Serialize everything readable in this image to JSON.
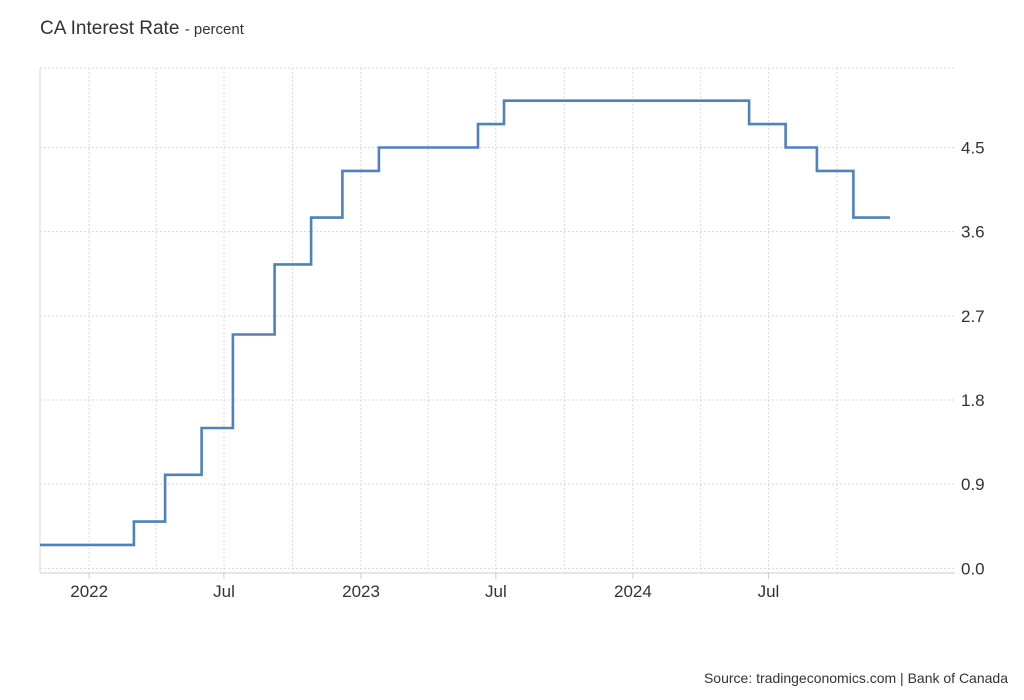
{
  "header": {
    "title": "CA Interest Rate",
    "subtitle": "- percent"
  },
  "source": "Source: tradingeconomics.com | Bank of Canada",
  "colors": {
    "line": "#4f81bd",
    "grid": "#d9d9d9",
    "axis": "#cccccc",
    "text": "#333333"
  },
  "chart_data": {
    "type": "line",
    "step": true,
    "title": "CA Interest Rate",
    "ylabel": "",
    "xlabel": "",
    "xlim": [
      "2021-10-27",
      "2025-02-23"
    ],
    "ylim": [
      -0.05,
      5.35
    ],
    "y_ticks": [
      0.0,
      0.9,
      1.8,
      2.7,
      3.6,
      4.5
    ],
    "y_tick_labels": [
      "0.0",
      "0.9",
      "1.8",
      "2.7",
      "3.6",
      "4.5"
    ],
    "x_ticks": [
      "2022-01-01",
      "2022-07-01",
      "2023-01-01",
      "2023-07-01",
      "2024-01-01",
      "2024-07-01"
    ],
    "x_tick_labels": [
      "2022",
      "Jul",
      "2023",
      "Jul",
      "2024",
      "Jul"
    ],
    "grid": true,
    "legend": "none",
    "series": [
      {
        "x": [
          "2021-10-27",
          "2022-03-02",
          "2022-04-13",
          "2022-06-01",
          "2022-07-13",
          "2022-09-07",
          "2022-10-26",
          "2022-12-07",
          "2023-01-25",
          "2023-06-07",
          "2023-07-12",
          "2024-06-05",
          "2024-07-24",
          "2024-09-04",
          "2024-10-23",
          "2024-12-11"
        ],
        "y": [
          0.25,
          0.5,
          1.0,
          1.5,
          2.5,
          3.25,
          3.75,
          4.25,
          4.5,
          4.75,
          5.0,
          4.75,
          4.5,
          4.25,
          3.75,
          3.75
        ]
      }
    ]
  }
}
